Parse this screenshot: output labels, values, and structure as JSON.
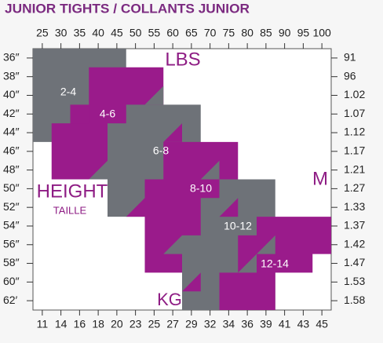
{
  "header": {
    "title": "JUNIOR TIGHTS / COLLANTS JUNIOR"
  },
  "top_axis": [
    "25",
    "30",
    "35",
    "40",
    "45",
    "50",
    "55",
    "60",
    "65",
    "70",
    "75",
    "80",
    "85",
    "90",
    "95",
    "100"
  ],
  "bottom_axis": [
    "11",
    "14",
    "16",
    "18",
    "20",
    "23",
    "25",
    "27",
    "29",
    "32",
    "34",
    "36",
    "39",
    "41",
    "43",
    "45"
  ],
  "left_axis": [
    "36″",
    "38″",
    "40″",
    "42″",
    "44″",
    "46″",
    "48″",
    "50″",
    "52″",
    "54″",
    "56″",
    "58″",
    "60″",
    "62′"
  ],
  "right_axis": [
    "91",
    "96",
    "1.02",
    "1.07",
    "1.12",
    "1.17",
    "1.21",
    "1.27",
    "1.33",
    "1.37",
    "1.42",
    "1.47",
    "1.53",
    "1.58"
  ],
  "labels": {
    "lbs": "LBS",
    "kg": "KG",
    "height": "HEIGHT",
    "taille": "TAILLE",
    "m": "M"
  },
  "sizes": [
    "2-4",
    "4-6",
    "6-8",
    "8-10",
    "10-12",
    "12-14"
  ]
}
